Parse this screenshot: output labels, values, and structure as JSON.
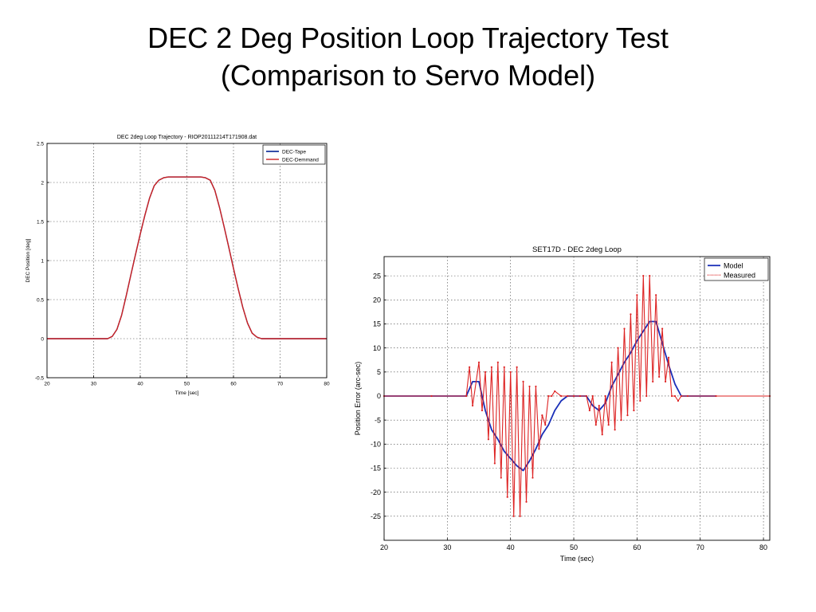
{
  "slide": {
    "title_line1": "DEC 2 Deg Position Loop Trajectory Test",
    "title_line2": "(Comparison to Servo Model)"
  },
  "chart_data": [
    {
      "type": "line",
      "title": "DEC 2deg Loop Trajectory - RIOP20111214T171908.dat",
      "xlabel": "Time [sec]",
      "ylabel": "DEC Position [deg]",
      "xlim": [
        20,
        80
      ],
      "ylim": [
        -0.5,
        2.5
      ],
      "xticks": [
        20,
        30,
        40,
        50,
        60,
        70,
        80
      ],
      "yticks": [
        -0.5,
        0,
        0.5,
        1,
        1.5,
        2,
        2.5
      ],
      "ytick_labels": [
        "-0.5",
        "0",
        "0.5",
        "1",
        "1.5",
        "2",
        "2.5"
      ],
      "grid": true,
      "legend_position": "top-right",
      "series": [
        {
          "name": "DEC-Tape",
          "color": "#1f3a9e",
          "x": [
            20,
            33,
            34,
            35,
            36,
            37,
            38,
            39,
            40,
            41,
            42,
            43,
            44,
            45,
            46,
            47,
            53,
            54,
            55,
            56,
            57,
            58,
            59,
            60,
            61,
            62,
            63,
            64,
            65,
            66,
            67,
            80
          ],
          "y": [
            0,
            0,
            0.03,
            0.12,
            0.3,
            0.55,
            0.82,
            1.08,
            1.34,
            1.58,
            1.8,
            1.96,
            2.03,
            2.06,
            2.07,
            2.07,
            2.07,
            2.06,
            2.03,
            1.9,
            1.68,
            1.43,
            1.17,
            0.9,
            0.64,
            0.4,
            0.2,
            0.07,
            0.02,
            0,
            0,
            0
          ]
        },
        {
          "name": "DEC-Demmand",
          "color": "#cc2222",
          "x": [
            20,
            33,
            34,
            35,
            36,
            37,
            38,
            39,
            40,
            41,
            42,
            43,
            44,
            45,
            46,
            47,
            53,
            54,
            55,
            56,
            57,
            58,
            59,
            60,
            61,
            62,
            63,
            64,
            65,
            66,
            67,
            80
          ],
          "y": [
            0,
            0,
            0.03,
            0.12,
            0.3,
            0.55,
            0.82,
            1.08,
            1.34,
            1.58,
            1.8,
            1.96,
            2.03,
            2.06,
            2.07,
            2.07,
            2.07,
            2.06,
            2.03,
            1.9,
            1.68,
            1.43,
            1.17,
            0.9,
            0.64,
            0.4,
            0.2,
            0.07,
            0.02,
            0,
            0,
            0
          ]
        }
      ]
    },
    {
      "type": "line",
      "title": "SET17D - DEC 2deg Loop",
      "xlabel": "Time (sec)",
      "ylabel": "Position Error (arc-sec)",
      "xlim": [
        20,
        81
      ],
      "ylim": [
        -30,
        29
      ],
      "xticks": [
        20,
        30,
        40,
        50,
        60,
        70,
        80
      ],
      "yticks": [
        -25,
        -20,
        -15,
        -10,
        -5,
        0,
        5,
        10,
        15,
        20,
        25
      ],
      "grid": true,
      "legend_position": "top-right",
      "series": [
        {
          "name": "Model",
          "color": "#1a2fb8",
          "x": [
            20,
            27.5,
            33,
            34,
            35,
            36,
            37,
            38,
            39,
            40,
            41,
            42,
            43,
            44,
            45,
            46,
            47,
            48,
            49,
            50,
            51,
            52,
            53,
            54,
            55,
            56,
            57,
            58,
            59,
            60,
            61,
            62,
            63,
            64,
            65,
            66,
            67,
            68,
            72.5
          ],
          "y": [
            0,
            0,
            0,
            3,
            3,
            -3,
            -7,
            -9,
            -11.5,
            -13,
            -14.5,
            -15.5,
            -13.5,
            -11,
            -8,
            -6,
            -3,
            -1,
            0,
            0,
            0,
            0,
            -2,
            -3,
            -1.5,
            2,
            4.5,
            7,
            9,
            11.5,
            13.5,
            15.5,
            15.5,
            11,
            6.5,
            2.5,
            0,
            0,
            0
          ]
        },
        {
          "name": "Measured",
          "color": "#dd2222",
          "x": [
            20,
            27.5,
            33,
            33.5,
            34,
            35,
            35.5,
            36,
            36.5,
            37,
            37.5,
            38,
            38.5,
            39,
            39.5,
            40,
            40.5,
            41,
            41.5,
            42,
            42.5,
            43,
            43.5,
            44,
            44.5,
            45,
            45.5,
            46,
            46.5,
            47,
            48,
            49,
            50,
            51,
            52,
            52.5,
            53,
            53.5,
            54,
            54.5,
            55,
            55.5,
            56,
            56.5,
            57,
            57.5,
            58,
            58.5,
            59,
            59.5,
            60,
            60.5,
            61,
            61.5,
            62,
            62.5,
            63,
            63.5,
            64,
            64.5,
            65,
            65.5,
            66,
            66.5,
            67,
            68,
            72.5,
            81
          ],
          "y": [
            0,
            0,
            0,
            6,
            -2,
            7,
            -3,
            5,
            -9,
            6,
            -14,
            7,
            -17,
            6,
            -21,
            5,
            -25,
            6,
            -25,
            3,
            -22,
            2,
            -17,
            2,
            -11,
            -4,
            -6,
            0,
            0,
            1,
            0,
            0,
            0,
            0,
            0,
            -3,
            0,
            -6,
            -2,
            -8,
            0,
            -6,
            7,
            -7,
            10,
            -5,
            14,
            -4,
            17,
            -3,
            21,
            -1,
            25,
            0,
            25,
            3,
            21,
            4,
            14,
            3,
            8,
            0,
            0,
            -1,
            0,
            0,
            0,
            0
          ]
        }
      ]
    }
  ]
}
